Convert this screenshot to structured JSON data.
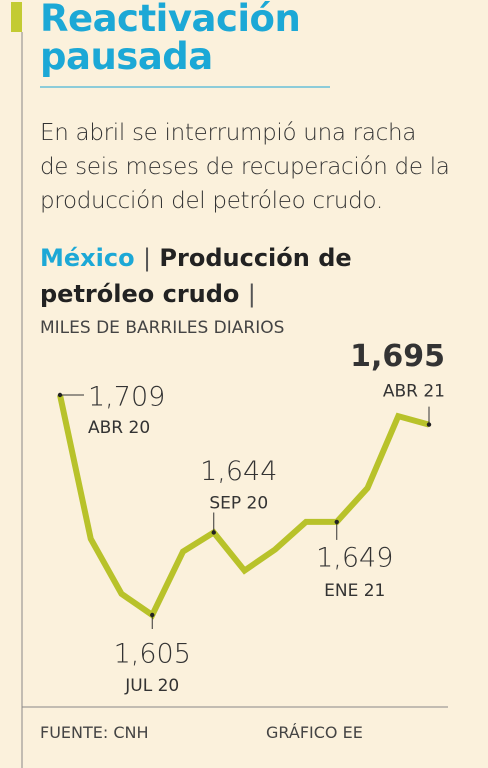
{
  "chart_data": {
    "type": "line",
    "title_main": "Reactivación pausada",
    "subtitle": "En abril se interrumpió una racha de seis meses de recuperación de la producción del petróleo crudo.",
    "country": "México",
    "separator": "|",
    "title": "Producción de petróleo crudo",
    "y_label": "MILES DE BARRILES DIARIOS",
    "categories": [
      "ABR 20",
      null,
      null,
      "JUL 20",
      null,
      "SEP 20",
      null,
      null,
      null,
      "ENE 21",
      null,
      null,
      "ABR 21"
    ],
    "values": [
      1709,
      1641,
      1615,
      1605,
      1635,
      1644,
      1626,
      1636,
      1649,
      1649,
      1665,
      1699,
      1695
    ],
    "value_labels": [
      "1,709",
      null,
      null,
      "1,605",
      null,
      "1,644",
      null,
      null,
      null,
      "1,649",
      null,
      null,
      "1,695"
    ],
    "color": "#b8c22a",
    "source": "FUENTE: CNH",
    "credit": "GRÁFICO EE"
  }
}
